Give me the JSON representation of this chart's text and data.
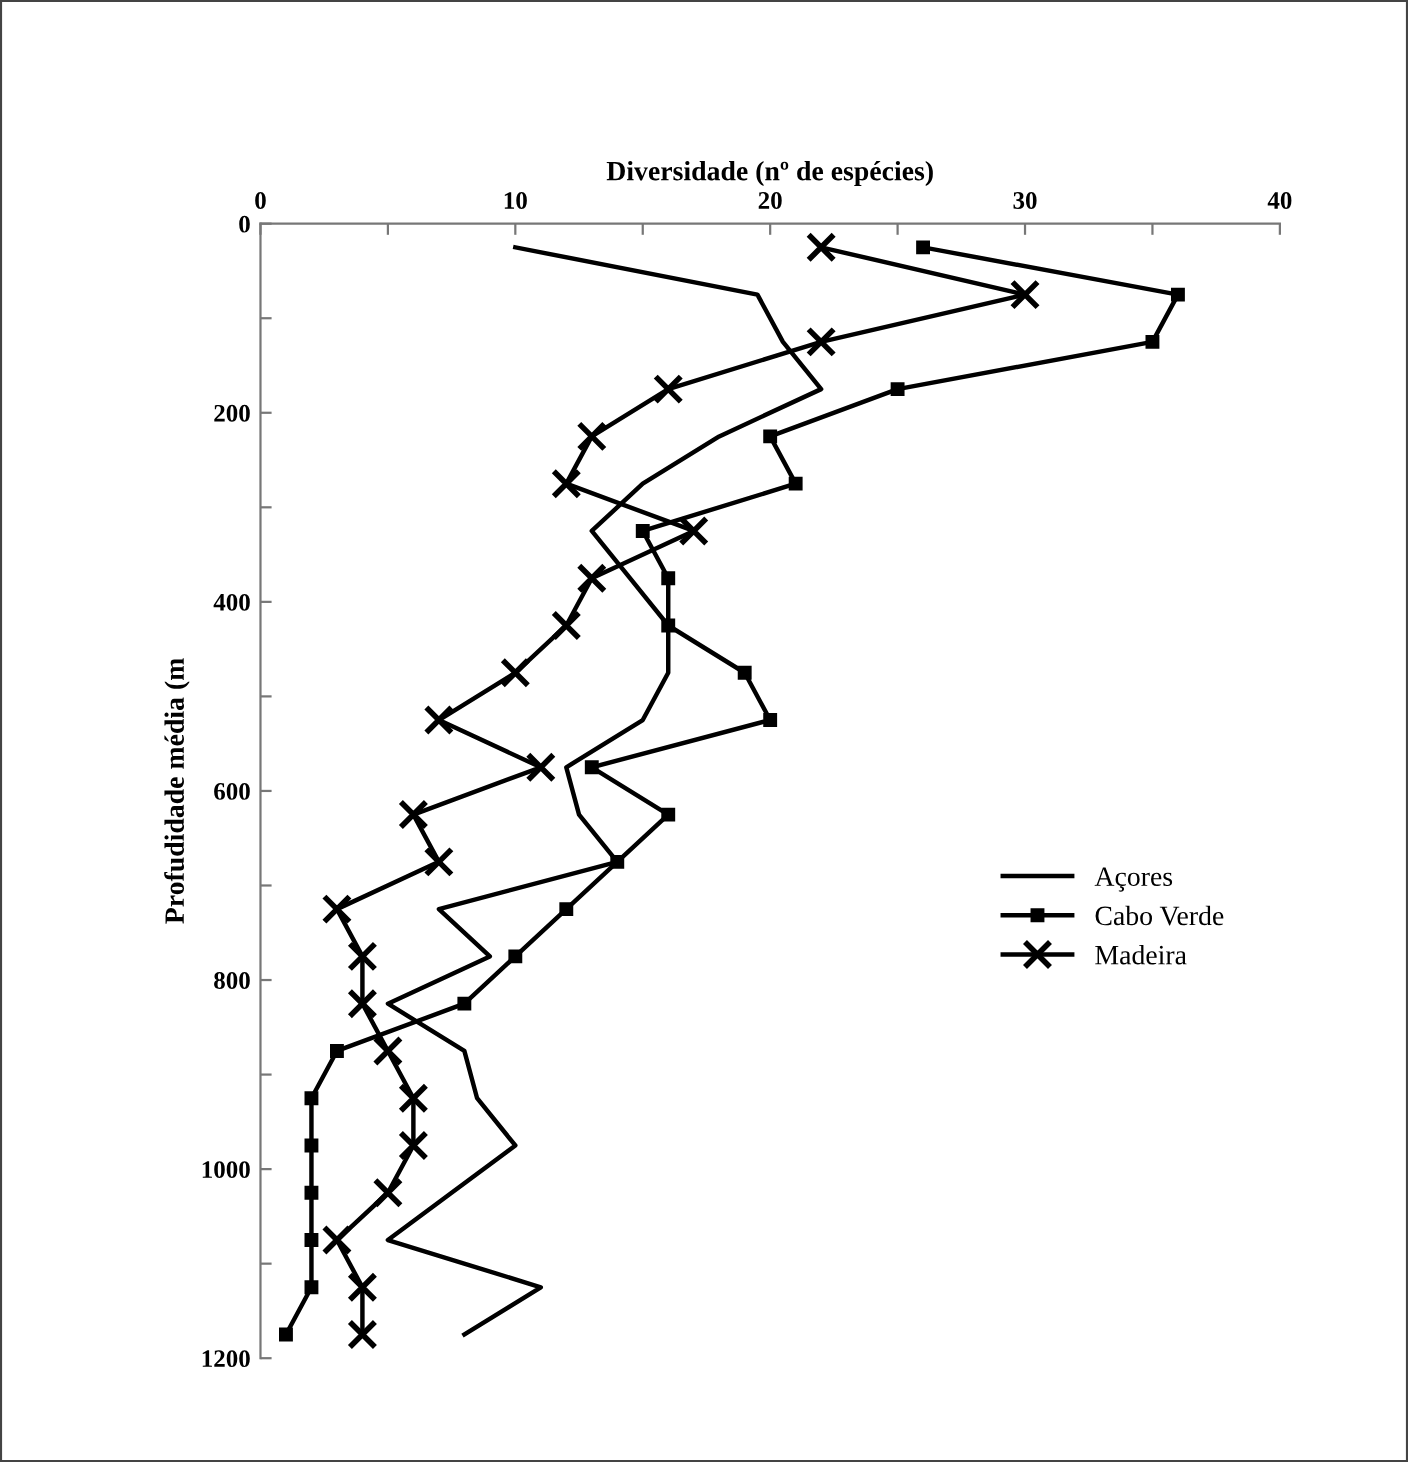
{
  "chart_data": {
    "type": "line",
    "xlabel": "Diversidade (nº de espécies)",
    "ylabel": "Profudidade média (m",
    "x": [
      25,
      75,
      125,
      175,
      225,
      275,
      325,
      375,
      425,
      475,
      525,
      575,
      625,
      675,
      725,
      775,
      825,
      875,
      925,
      975,
      1025,
      1075,
      1125,
      1175
    ],
    "series": [
      {
        "name": "Açores",
        "color": "#000000",
        "marker": "none",
        "values": [
          10,
          19.5,
          20.5,
          22,
          18,
          15,
          13,
          14.5,
          16,
          16,
          15,
          12,
          12.5,
          14,
          7,
          9,
          5,
          8,
          8.5,
          10,
          7.5,
          5,
          11,
          8
        ]
      },
      {
        "name": "Cabo Verde",
        "color": "#000000",
        "marker": "square",
        "values": [
          26,
          36,
          35,
          25,
          20,
          21,
          15,
          16,
          16,
          19,
          20,
          13,
          16,
          14,
          12,
          10,
          8,
          3,
          2,
          2,
          2,
          2,
          2,
          1
        ]
      },
      {
        "name": "Madeira",
        "color": "#000000",
        "marker": "cross",
        "values": [
          22,
          30,
          22,
          16,
          13,
          12,
          17,
          13,
          12,
          10,
          7,
          11,
          6,
          7,
          3,
          4,
          4,
          5,
          6,
          6,
          5,
          3,
          4,
          4
        ]
      }
    ],
    "orientation": "horizontal",
    "xlim": [
      0,
      40
    ],
    "xticks": [
      0,
      {
        "value": 5,
        "label": null
      },
      10,
      {
        "value": 15,
        "label": null
      },
      20,
      {
        "value": 25,
        "label": null
      },
      30,
      {
        "value": 35,
        "label": null
      },
      40
    ],
    "ylim": [
      1200,
      0
    ],
    "yticks": [
      0,
      {
        "value": 100,
        "label": null
      },
      200,
      {
        "value": 300,
        "label": null
      },
      400,
      {
        "value": 500,
        "label": null
      },
      600,
      {
        "value": 700,
        "label": null
      },
      800,
      {
        "value": 900,
        "label": null
      },
      1000,
      {
        "value": 1100,
        "label": null
      },
      1200
    ],
    "grid": false,
    "legend": "bottom right",
    "line_style": "solid"
  }
}
